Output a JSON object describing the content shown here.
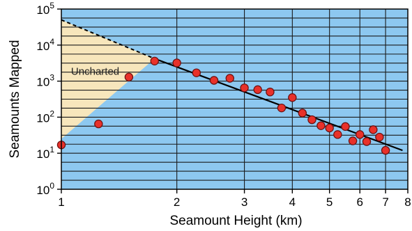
{
  "chart_data": {
    "type": "scatter",
    "title": "",
    "xlabel": "Seamount Height (km)",
    "ylabel": "Seamounts Mapped",
    "x_scale": "log",
    "y_scale": "log",
    "xlim": [
      1,
      8
    ],
    "ylim": [
      1,
      100000
    ],
    "x_ticks": [
      {
        "value": 1,
        "label": "1"
      },
      {
        "value": 2,
        "label": "2"
      },
      {
        "value": 3,
        "label": "3"
      },
      {
        "value": 4,
        "label": "4"
      },
      {
        "value": 5,
        "label": "5"
      },
      {
        "value": 6,
        "label": "6"
      },
      {
        "value": 7,
        "label": "7"
      },
      {
        "value": 8,
        "label": "8"
      }
    ],
    "y_ticks": [
      {
        "value": 1,
        "base": "10",
        "exp": "0"
      },
      {
        "value": 10,
        "base": "10",
        "exp": "1"
      },
      {
        "value": 100,
        "base": "10",
        "exp": "2"
      },
      {
        "value": 1000,
        "base": "10",
        "exp": "3"
      },
      {
        "value": 10000,
        "base": "10",
        "exp": "4"
      },
      {
        "value": 100000,
        "base": "10",
        "exp": "5"
      }
    ],
    "grid": "horizontal",
    "points": [
      {
        "x": 1.0,
        "y": 17
      },
      {
        "x": 1.25,
        "y": 65
      },
      {
        "x": 1.5,
        "y": 1300
      },
      {
        "x": 1.75,
        "y": 3600
      },
      {
        "x": 2.0,
        "y": 3200
      },
      {
        "x": 2.25,
        "y": 1700
      },
      {
        "x": 2.5,
        "y": 1050
      },
      {
        "x": 2.75,
        "y": 1200
      },
      {
        "x": 3.0,
        "y": 650
      },
      {
        "x": 3.25,
        "y": 580
      },
      {
        "x": 3.5,
        "y": 500
      },
      {
        "x": 3.75,
        "y": 180
      },
      {
        "x": 4.0,
        "y": 350
      },
      {
        "x": 4.25,
        "y": 130
      },
      {
        "x": 4.5,
        "y": 85
      },
      {
        "x": 4.75,
        "y": 58
      },
      {
        "x": 5.0,
        "y": 50
      },
      {
        "x": 5.25,
        "y": 33
      },
      {
        "x": 5.5,
        "y": 55
      },
      {
        "x": 5.75,
        "y": 22
      },
      {
        "x": 6.0,
        "y": 33
      },
      {
        "x": 6.25,
        "y": 21
      },
      {
        "x": 6.5,
        "y": 45
      },
      {
        "x": 6.75,
        "y": 28
      },
      {
        "x": 7.0,
        "y": 12
      }
    ],
    "trend_solid": [
      {
        "x": 1.75,
        "y": 4200
      },
      {
        "x": 7.75,
        "y": 12
      }
    ],
    "trend_dashed": [
      {
        "x": 1.0,
        "y": 50000
      },
      {
        "x": 1.75,
        "y": 4200
      }
    ],
    "uncharted_region": {
      "label": "Uncharted",
      "lower_boundary": [
        {
          "x": 1.0,
          "y": 25
        },
        {
          "x": 1.75,
          "y": 4200
        }
      ]
    },
    "colors": {
      "background": "#8dc8f0",
      "uncharted": "#f7e6bc",
      "point": "#e8312a",
      "point_outline": "#6a1010",
      "grid": "#1a1a1a",
      "trend": "#000000"
    }
  }
}
